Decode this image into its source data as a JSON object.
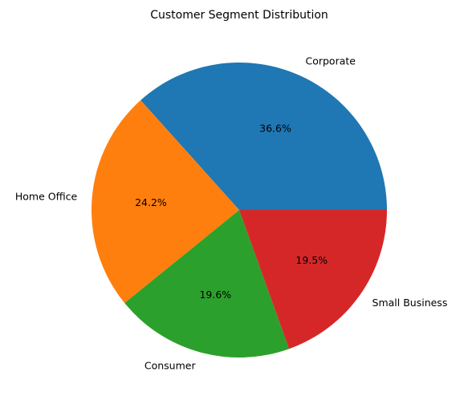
{
  "chart_data": {
    "type": "pie",
    "title": "Customer Segment Distribution",
    "slices": [
      {
        "label": "Corporate",
        "value": 36.6,
        "pct_label": "36.6%",
        "color": "#1f77b4"
      },
      {
        "label": "Home Office",
        "value": 24.2,
        "pct_label": "24.2%",
        "color": "#ff7f0e"
      },
      {
        "label": "Consumer",
        "value": 19.6,
        "pct_label": "19.6%",
        "color": "#2ca02c"
      },
      {
        "label": "Small Business",
        "value": 19.5,
        "pct_label": "19.5%",
        "color": "#d62728"
      }
    ],
    "start_angle_deg": 0,
    "direction": "counterclockwise",
    "legend": "none"
  }
}
